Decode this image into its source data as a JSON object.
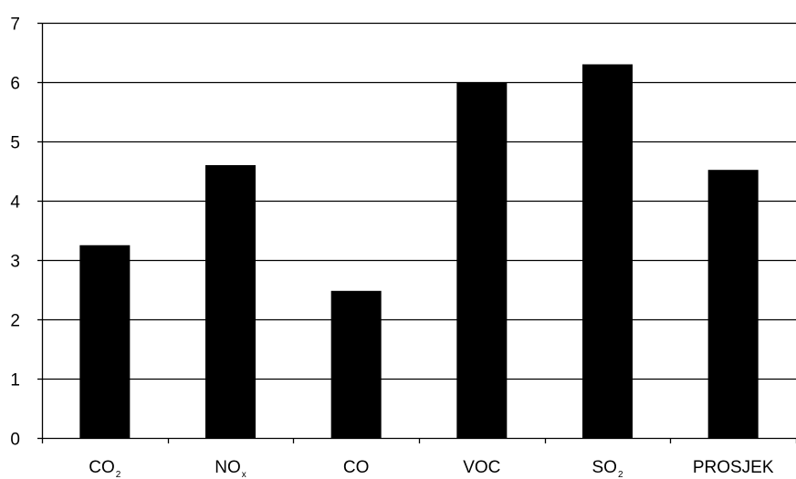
{
  "chart_data": {
    "type": "bar",
    "title": "",
    "xlabel": "",
    "ylabel": "",
    "categories": [
      "CO2",
      "NOx",
      "CO",
      "VOC",
      "SO2",
      "PROSJEK"
    ],
    "category_labels": [
      {
        "main": "CO",
        "sub": "2"
      },
      {
        "main": "NO",
        "sub": "x"
      },
      {
        "main": "CO",
        "sub": ""
      },
      {
        "main": "VOC",
        "sub": ""
      },
      {
        "main": "SO",
        "sub": "2"
      },
      {
        "main": "PROSJEK",
        "sub": ""
      }
    ],
    "values": [
      3.25,
      4.6,
      2.48,
      6.0,
      6.3,
      4.52
    ],
    "ylim": [
      0,
      7
    ],
    "yticks": [
      0,
      1,
      2,
      3,
      4,
      5,
      6,
      7
    ],
    "grid": true,
    "legend": "none",
    "bar_color": "#000000",
    "grid_color": "#000000"
  }
}
